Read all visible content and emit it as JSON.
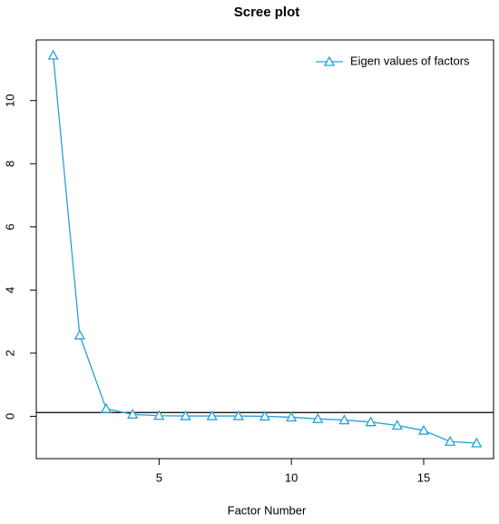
{
  "chart_data": {
    "type": "line",
    "title": "Scree plot",
    "xlabel": "Factor Number",
    "x": [
      1,
      2,
      3,
      4,
      5,
      6,
      7,
      8,
      9,
      10,
      11,
      12,
      13,
      14,
      15,
      16,
      17
    ],
    "series": [
      {
        "name": "Eigen values of factors",
        "color": "#2a9fd8",
        "values": [
          11.43,
          2.57,
          0.24,
          0.06,
          0.02,
          0.01,
          0.01,
          0.01,
          0.0,
          -0.03,
          -0.08,
          -0.12,
          -0.18,
          -0.29,
          -0.45,
          -0.8,
          -0.85
        ]
      }
    ],
    "xlim": [
      0.36,
      17.64
    ],
    "xticks": [
      5,
      10,
      15
    ],
    "ylim": [
      -1.34,
      11.92
    ],
    "yticks": [
      0,
      2,
      4,
      6,
      8,
      10
    ],
    "reference_line": 0.12,
    "legend": "top-right",
    "grid": false
  }
}
